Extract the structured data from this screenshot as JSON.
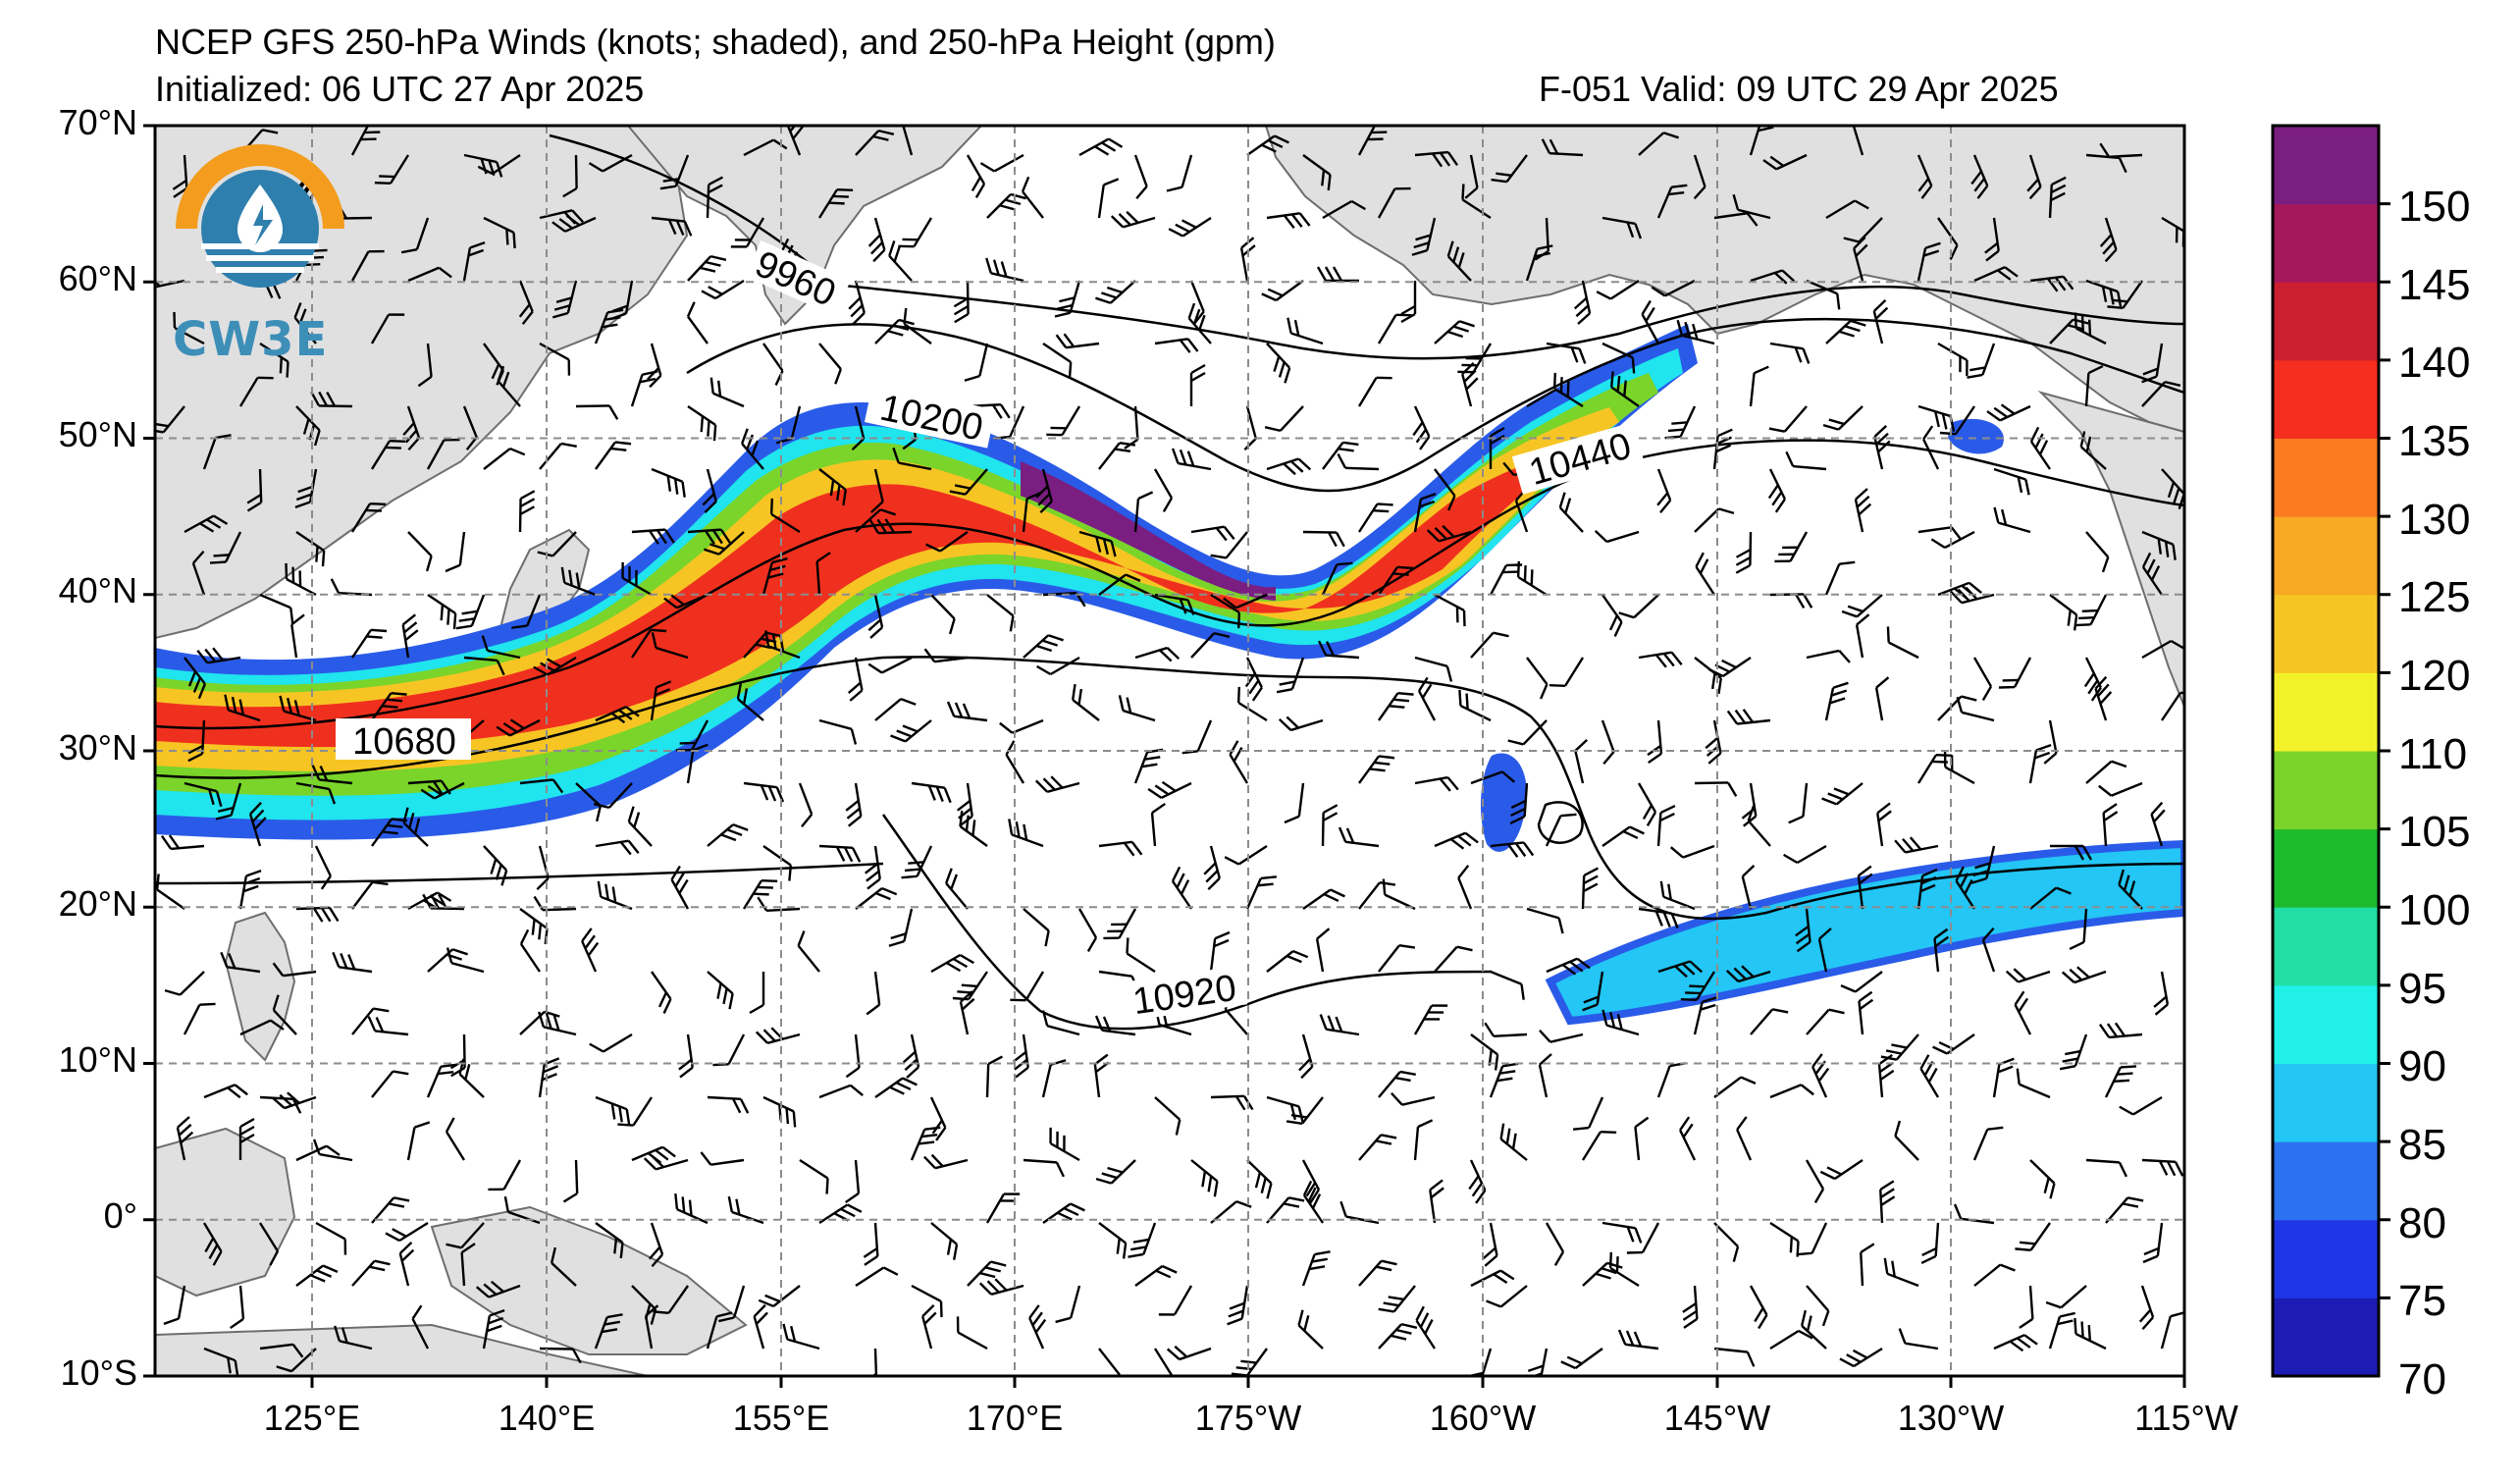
{
  "header": {
    "title": "NCEP GFS 250-hPa Winds (knots; shaded), and 250-hPa Height (gpm)",
    "initialized": "Initialized: 06 UTC 27 Apr 2025",
    "valid": "F-051  Valid: 09 UTC 29 Apr 2025"
  },
  "logo": {
    "text": "CW3E",
    "icon": "water-drop-sun-icon"
  },
  "map": {
    "projection": "cylindrical",
    "lat_range": [
      -10,
      70
    ],
    "lon_range": [
      "115°E",
      "115°W"
    ],
    "lat_labels": [
      "70°N",
      "60°N",
      "50°N",
      "40°N",
      "30°N",
      "20°N",
      "10°N",
      "0°",
      "10°S"
    ],
    "lon_labels": [
      "125°E",
      "140°E",
      "155°E",
      "170°E",
      "175°W",
      "160°W",
      "145°W",
      "130°W",
      "115°W"
    ],
    "height_contour_labels": [
      "9960",
      "10200",
      "10440",
      "10680",
      "10920"
    ],
    "colors": {
      "land": "#e0e0e0",
      "coast": "#6e6e6e",
      "grid": "#8c8c8c"
    }
  },
  "colorbar": {
    "labels": [
      "150",
      "145",
      "140",
      "135",
      "130",
      "125",
      "120",
      "110",
      "105",
      "100",
      "95",
      "90",
      "85",
      "80",
      "75",
      "70"
    ],
    "colors": [
      "#1c1cb4",
      "#1f36e6",
      "#2b72f2",
      "#23c6f5",
      "#20f0e8",
      "#22dfa6",
      "#1cbb2c",
      "#7ad42a",
      "#f3f22a",
      "#f6c524",
      "#f8a822",
      "#fc7a22",
      "#f52e1f",
      "#cc1f2f",
      "#a6185c",
      "#7b1e82"
    ]
  }
}
